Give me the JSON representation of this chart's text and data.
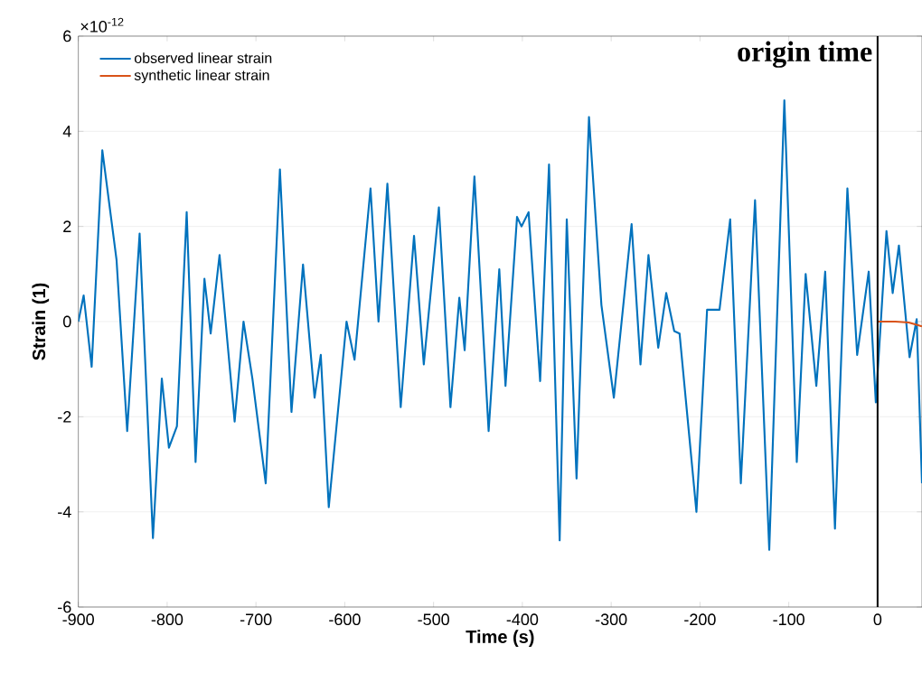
{
  "chart_data": {
    "type": "line",
    "xlabel": "Time (s)",
    "ylabel": "Strain (1)",
    "annotations": [
      "×10$^{-12}$"
    ],
    "xlim": [
      -900,
      50
    ],
    "ylim": [
      -6,
      6
    ],
    "xticks": [
      -900,
      -800,
      -700,
      -600,
      -500,
      -400,
      -300,
      -200,
      -100,
      0
    ],
    "yticks": [
      -6,
      -4,
      -2,
      0,
      2,
      4,
      6
    ],
    "grid": "y",
    "legend": "top left",
    "series": [
      {
        "name": "observed linear strain",
        "color": "#0072bd",
        "x": [
          -900,
          -894,
          -885,
          -873,
          -857,
          -845,
          -831,
          -816,
          -806,
          -798,
          -789,
          -778,
          -768,
          -758,
          -751,
          -741,
          -724,
          -714,
          -704,
          -689,
          -673,
          -660,
          -647,
          -634,
          -627,
          -618,
          -598,
          -589,
          -571,
          -562,
          -552,
          -537,
          -522,
          -511,
          -494,
          -481,
          -471,
          -465,
          -454,
          -438,
          -426,
          -419,
          -406,
          -401,
          -393,
          -380,
          -370,
          -358,
          -350,
          -339,
          -325,
          -311,
          -297,
          -277,
          -267,
          -258,
          -247,
          -238,
          -229,
          -223,
          -204,
          -192,
          -178,
          -166,
          -154,
          -138,
          -122,
          -105,
          -91,
          -81,
          -69,
          -59,
          -48,
          -34,
          -23,
          -10,
          -2,
          10,
          17,
          24,
          36,
          44,
          50
        ],
        "values": [
          0,
          0.55,
          -0.95,
          3.6,
          1.3,
          -2.3,
          1.85,
          -4.55,
          -1.2,
          -2.65,
          -2.2,
          2.3,
          -2.95,
          0.9,
          -0.25,
          1.4,
          -2.1,
          0,
          -1.2,
          -3.4,
          3.2,
          -1.9,
          1.2,
          -1.6,
          -0.7,
          -3.9,
          0,
          -0.8,
          2.8,
          0,
          2.9,
          -1.8,
          1.8,
          -0.9,
          2.4,
          -1.8,
          0.5,
          -0.6,
          3.05,
          -2.3,
          1.1,
          -1.35,
          2.2,
          2.0,
          2.3,
          -1.25,
          3.3,
          -4.6,
          2.15,
          -3.3,
          4.3,
          0.35,
          -1.6,
          2.05,
          -0.9,
          1.4,
          -0.55,
          0.6,
          -0.2,
          -0.25,
          -4.0,
          0.25,
          0.25,
          2.15,
          -3.4,
          2.55,
          -4.8,
          4.65,
          -2.95,
          1.0,
          -1.35,
          1.05,
          -4.35,
          2.8,
          -0.7,
          1.05,
          -1.7,
          1.9,
          0.6,
          1.6,
          -0.75,
          0.05,
          -3.4
        ]
      },
      {
        "name": "synthetic linear strain",
        "color": "#d95319",
        "x": [
          0,
          20,
          35,
          50
        ],
        "values": [
          0,
          0,
          -0.02,
          -0.1
        ]
      }
    ],
    "ref_lines": [
      {
        "axis": "x",
        "value": 0,
        "label": "origin time",
        "color": "#000000"
      }
    ]
  }
}
